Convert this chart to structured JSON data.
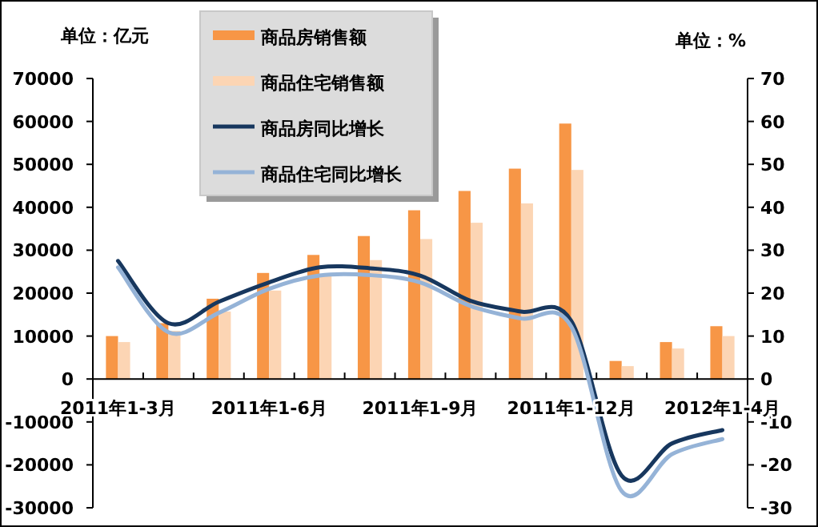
{
  "chart_data": {
    "type": "bar",
    "ylabel": "单位：亿元",
    "y2label": "单位：%",
    "categories": [
      "2011年1-3月",
      null,
      null,
      "2011年1-6月",
      null,
      null,
      "2011年1-9月",
      null,
      null,
      "2011年1-12月",
      null,
      null,
      "2012年1-4月"
    ],
    "series": [
      {
        "name": "商品房销售额",
        "color": "#f79646",
        "values": [
          10000,
          13000,
          18700,
          24700,
          28900,
          33300,
          39300,
          43800,
          49000,
          59500,
          4200,
          8600,
          12300
        ]
      },
      {
        "name": "商品住宅销售额",
        "color": "#fcd5b4",
        "values": [
          8600,
          11200,
          15700,
          20600,
          24000,
          27700,
          32600,
          36400,
          40900,
          48700,
          3000,
          7100,
          10000
        ]
      },
      {
        "name": "商品房同比增长",
        "type": "line",
        "axis": "y2",
        "color": "#17375e",
        "values": [
          27.5,
          13,
          18,
          22.5,
          26,
          25.8,
          24.1,
          18.2,
          15.7,
          13.5,
          -22.5,
          -15,
          -11.9
        ]
      },
      {
        "name": "商品住宅同比增长",
        "type": "line",
        "axis": "y2",
        "color": "#95b3d7",
        "values": [
          26,
          10.9,
          15.4,
          21,
          24.1,
          24.2,
          22.5,
          17,
          14.1,
          12.2,
          -26.1,
          -17.5,
          -14
        ]
      }
    ],
    "ylim": [
      -30000,
      70000
    ],
    "yticks": [
      -30000,
      -20000,
      -10000,
      0,
      10000,
      20000,
      30000,
      40000,
      50000,
      60000,
      70000
    ],
    "y2lim": [
      -30,
      70
    ],
    "y2ticks": [
      -30,
      -20,
      -10,
      0,
      10,
      20,
      30,
      40,
      50,
      60,
      70
    ],
    "legend": "top left"
  }
}
